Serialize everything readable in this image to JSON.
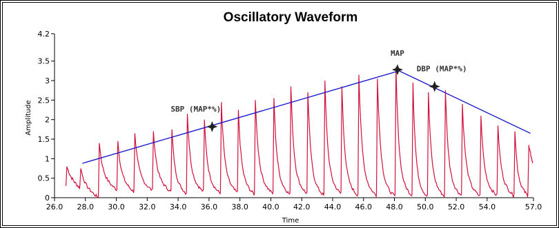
{
  "chart_data": {
    "type": "line",
    "title": "Oscillatory Waveform",
    "xlabel": "Time",
    "ylabel": "Amplitude",
    "xlim": [
      26.0,
      57.0
    ],
    "ylim": [
      0,
      4.2
    ],
    "x_ticks": [
      26.0,
      28.0,
      30.0,
      32.0,
      34.0,
      36.0,
      38.0,
      40.0,
      42.0,
      44.0,
      46.0,
      48.0,
      50.0,
      52.0,
      54.0,
      57.0
    ],
    "x_tick_labels": [
      "26.0",
      "28.0",
      "30.0",
      "32.0",
      "34.0",
      "36.0",
      "38.0",
      "40.0",
      "42.0",
      "44.0",
      "46.0",
      "48.0",
      "50.0",
      "52.0",
      "54.0",
      "57.0"
    ],
    "y_ticks": [
      0,
      0.5,
      1,
      1.5,
      2,
      2.5,
      3,
      3.5,
      4.2
    ],
    "y_tick_labels": [
      "0",
      "0.5",
      "1",
      "1.5",
      "2",
      "2.5",
      "3",
      "3.5",
      "4.2"
    ],
    "grid": false,
    "series": [
      {
        "color": "#d0103a",
        "beats": [
          {
            "x": 26.8,
            "peak": 0.8,
            "trough": 0.25
          },
          {
            "x": 27.7,
            "peak": 0.75,
            "trough": 0.0
          },
          {
            "x": 28.9,
            "peak": 1.4,
            "trough": 0.2
          },
          {
            "x": 30.1,
            "peak": 1.45,
            "trough": 0.15
          },
          {
            "x": 31.2,
            "peak": 1.65,
            "trough": 0.18
          },
          {
            "x": 32.4,
            "peak": 1.7,
            "trough": 0.15
          },
          {
            "x": 33.6,
            "peak": 1.75,
            "trough": 0.1
          },
          {
            "x": 34.6,
            "peak": 2.15,
            "trough": 0.15
          },
          {
            "x": 35.7,
            "peak": 2.0,
            "trough": 0.1
          },
          {
            "x": 36.8,
            "peak": 2.45,
            "trough": 0.12
          },
          {
            "x": 37.9,
            "peak": 2.25,
            "trough": 0.08
          },
          {
            "x": 39.0,
            "peak": 2.5,
            "trough": 0.1
          },
          {
            "x": 40.2,
            "peak": 2.55,
            "trough": 0.08
          },
          {
            "x": 41.3,
            "peak": 2.85,
            "trough": 0.1
          },
          {
            "x": 42.4,
            "peak": 2.7,
            "trough": 0.05
          },
          {
            "x": 43.5,
            "peak": 3.0,
            "trough": 0.1
          },
          {
            "x": 44.6,
            "peak": 2.85,
            "trough": 0.05
          },
          {
            "x": 45.7,
            "peak": 3.15,
            "trough": 0.05
          },
          {
            "x": 46.9,
            "peak": 3.05,
            "trough": 0.02
          },
          {
            "x": 48.1,
            "peak": 3.35,
            "trough": 0.05
          },
          {
            "x": 49.2,
            "peak": 2.95,
            "trough": 0.02
          },
          {
            "x": 50.2,
            "peak": 2.7,
            "trough": 0.03
          },
          {
            "x": 51.3,
            "peak": 2.75,
            "trough": 0.05
          },
          {
            "x": 52.4,
            "peak": 2.4,
            "trough": 0.03
          },
          {
            "x": 53.6,
            "peak": 2.1,
            "trough": 0.05
          },
          {
            "x": 54.7,
            "peak": 1.85,
            "trough": 0.05
          },
          {
            "x": 55.8,
            "peak": 1.7,
            "trough": 0.05
          },
          {
            "x": 56.7,
            "peak": 1.35,
            "trough": 0.9
          }
        ]
      },
      {
        "color": "#1a1acc",
        "points": [
          {
            "x": 27.8,
            "y": 0.88
          },
          {
            "x": 48.3,
            "y": 3.25
          },
          {
            "x": 56.8,
            "y": 1.65
          }
        ]
      }
    ],
    "annotations": [
      {
        "label": "SBP (MAP*%)",
        "x": 36.2,
        "y": 1.82
      },
      {
        "label": "MAP",
        "x": 48.2,
        "y": 3.28
      },
      {
        "label": "DBP (MAP*%)",
        "x": 50.6,
        "y": 2.85
      }
    ]
  }
}
